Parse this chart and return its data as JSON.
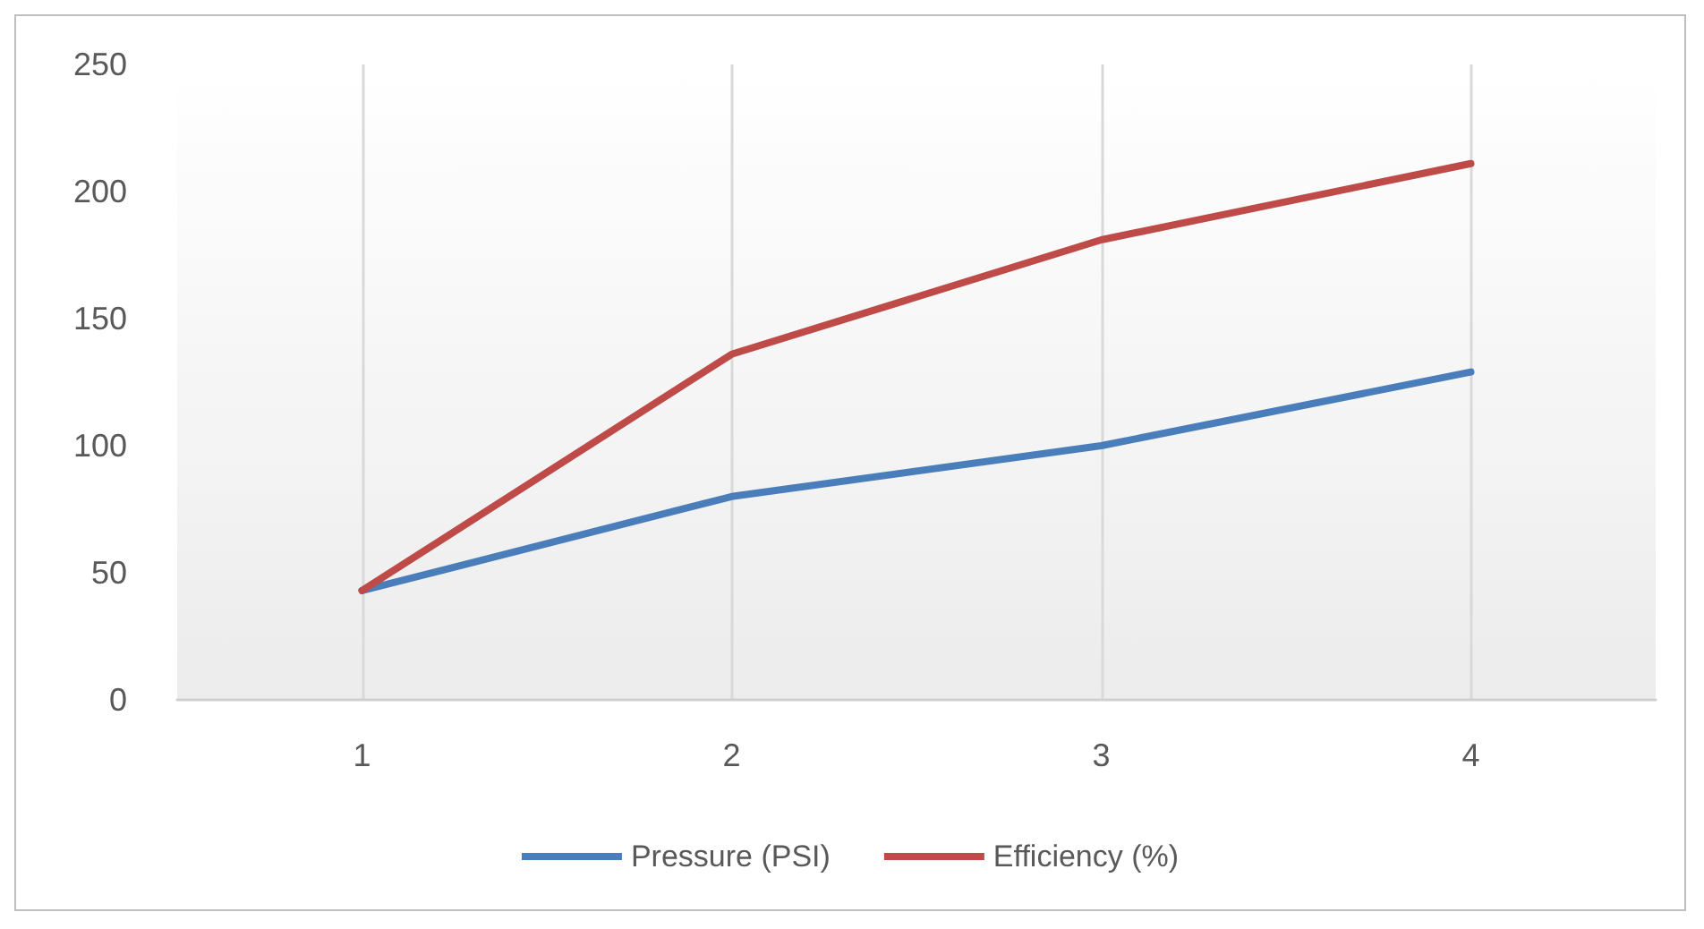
{
  "chart_data": {
    "type": "line",
    "x": [
      1,
      2,
      3,
      4
    ],
    "xlim": [
      0.5,
      4.5
    ],
    "xticks": [
      1,
      2,
      3,
      4
    ],
    "ylim": [
      0,
      250
    ],
    "yticks": [
      0,
      50,
      100,
      150,
      200,
      250
    ],
    "series": [
      {
        "name": "Pressure (PSI)",
        "color": "#4a7ebb",
        "values": [
          43,
          80,
          100,
          129
        ]
      },
      {
        "name": "Efficiency (%)",
        "color": "#be4b48",
        "values": [
          43,
          136,
          181,
          211
        ]
      }
    ],
    "grid": "x",
    "legend": "bottom",
    "marker": "none",
    "line_style": "solid"
  }
}
